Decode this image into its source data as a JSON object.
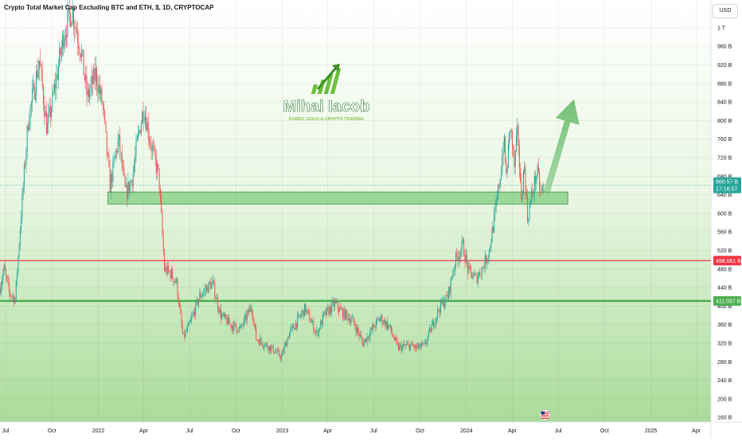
{
  "chart_title": "Crypto Total Market Cap Excluding BTC and ETH, $, 1D, CRYPTOCAP",
  "currency_button": "USD",
  "watermark": {
    "name": "Mihai Iacob",
    "tagline": "FOREX, GOLD & CRYPTO TRADING"
  },
  "colors": {
    "up": "#26a69a",
    "down": "#ef5350",
    "zone": "#5cbf5c",
    "resistance_line": "#f23645",
    "support_line": "#4caf50",
    "price_tag": "#26a69a",
    "arrow": "#66bb6a"
  },
  "chart_data": {
    "type": "candlestick",
    "title": "Crypto Total Market Cap Excluding BTC and ETH, $, 1D, CRYPTOCAP",
    "y_unit": "USD (billions)",
    "ylim": [
      150,
      1060
    ],
    "y_ticks": [
      {
        "value": 160,
        "label": "160 B"
      },
      {
        "value": 200,
        "label": "200 B"
      },
      {
        "value": 240,
        "label": "240 B"
      },
      {
        "value": 280,
        "label": "280 B"
      },
      {
        "value": 320,
        "label": "320 B"
      },
      {
        "value": 360,
        "label": "360 B"
      },
      {
        "value": 400,
        "label": "400 B"
      },
      {
        "value": 440,
        "label": "440 B"
      },
      {
        "value": 480,
        "label": "480 B"
      },
      {
        "value": 520,
        "label": "520 B"
      },
      {
        "value": 560,
        "label": "560 B"
      },
      {
        "value": 600,
        "label": "600 B"
      },
      {
        "value": 640,
        "label": "640 B"
      },
      {
        "value": 680,
        "label": "680 B"
      },
      {
        "value": 720,
        "label": "720 B"
      },
      {
        "value": 760,
        "label": "760 B"
      },
      {
        "value": 800,
        "label": "800 B"
      },
      {
        "value": 840,
        "label": "840 B"
      },
      {
        "value": 880,
        "label": "880 B"
      },
      {
        "value": 920,
        "label": "920 B"
      },
      {
        "value": 960,
        "label": "960 B"
      },
      {
        "value": 1000,
        "label": "1 T"
      }
    ],
    "xlim": [
      "2021-06-20",
      "2025-04-30"
    ],
    "x_ticks": [
      {
        "date": "2021-07-01",
        "label": "Jul"
      },
      {
        "date": "2021-10-01",
        "label": "Oct"
      },
      {
        "date": "2022-01-01",
        "label": "2022"
      },
      {
        "date": "2022-04-01",
        "label": "Apr"
      },
      {
        "date": "2022-07-01",
        "label": "Jul"
      },
      {
        "date": "2022-10-01",
        "label": "Oct"
      },
      {
        "date": "2023-01-01",
        "label": "2023"
      },
      {
        "date": "2023-04-01",
        "label": "Apr"
      },
      {
        "date": "2023-07-01",
        "label": "Jul"
      },
      {
        "date": "2023-10-01",
        "label": "Oct"
      },
      {
        "date": "2024-01-01",
        "label": "2024"
      },
      {
        "date": "2024-04-01",
        "label": "Apr"
      },
      {
        "date": "2024-07-01",
        "label": "Jul"
      },
      {
        "date": "2024-10-01",
        "label": "Oct"
      },
      {
        "date": "2025-01-01",
        "label": "2025"
      },
      {
        "date": "2025-04-01",
        "label": "Apr"
      }
    ],
    "price_path": [
      {
        "date": "2021-06-20",
        "value": 440
      },
      {
        "date": "2021-06-28",
        "value": 480
      },
      {
        "date": "2021-07-08",
        "value": 430
      },
      {
        "date": "2021-07-20",
        "value": 415
      },
      {
        "date": "2021-08-01",
        "value": 600
      },
      {
        "date": "2021-08-15",
        "value": 800
      },
      {
        "date": "2021-09-06",
        "value": 930
      },
      {
        "date": "2021-09-21",
        "value": 780
      },
      {
        "date": "2021-10-05",
        "value": 860
      },
      {
        "date": "2021-10-25",
        "value": 990
      },
      {
        "date": "2021-11-10",
        "value": 1040
      },
      {
        "date": "2021-11-28",
        "value": 950
      },
      {
        "date": "2021-12-10",
        "value": 850
      },
      {
        "date": "2021-12-27",
        "value": 900
      },
      {
        "date": "2022-01-10",
        "value": 830
      },
      {
        "date": "2022-01-24",
        "value": 660
      },
      {
        "date": "2022-02-10",
        "value": 760
      },
      {
        "date": "2022-02-24",
        "value": 640
      },
      {
        "date": "2022-03-10",
        "value": 680
      },
      {
        "date": "2022-03-20",
        "value": 760
      },
      {
        "date": "2022-04-01",
        "value": 830
      },
      {
        "date": "2022-04-15",
        "value": 750
      },
      {
        "date": "2022-05-01",
        "value": 680
      },
      {
        "date": "2022-05-12",
        "value": 480
      },
      {
        "date": "2022-05-25",
        "value": 470
      },
      {
        "date": "2022-06-05",
        "value": 450
      },
      {
        "date": "2022-06-18",
        "value": 330
      },
      {
        "date": "2022-07-01",
        "value": 360
      },
      {
        "date": "2022-07-20",
        "value": 420
      },
      {
        "date": "2022-08-05",
        "value": 440
      },
      {
        "date": "2022-08-15",
        "value": 450
      },
      {
        "date": "2022-09-01",
        "value": 380
      },
      {
        "date": "2022-09-20",
        "value": 360
      },
      {
        "date": "2022-10-10",
        "value": 350
      },
      {
        "date": "2022-11-01",
        "value": 400
      },
      {
        "date": "2022-11-10",
        "value": 330
      },
      {
        "date": "2022-11-25",
        "value": 320
      },
      {
        "date": "2022-12-15",
        "value": 305
      },
      {
        "date": "2022-12-30",
        "value": 290
      },
      {
        "date": "2023-01-14",
        "value": 340
      },
      {
        "date": "2023-02-01",
        "value": 370
      },
      {
        "date": "2023-02-15",
        "value": 395
      },
      {
        "date": "2023-03-10",
        "value": 340
      },
      {
        "date": "2023-03-25",
        "value": 380
      },
      {
        "date": "2023-04-15",
        "value": 405
      },
      {
        "date": "2023-05-01",
        "value": 385
      },
      {
        "date": "2023-05-20",
        "value": 370
      },
      {
        "date": "2023-06-10",
        "value": 320
      },
      {
        "date": "2023-06-25",
        "value": 345
      },
      {
        "date": "2023-07-14",
        "value": 375
      },
      {
        "date": "2023-08-01",
        "value": 355
      },
      {
        "date": "2023-08-18",
        "value": 310
      },
      {
        "date": "2023-09-10",
        "value": 315
      },
      {
        "date": "2023-09-25",
        "value": 310
      },
      {
        "date": "2023-10-10",
        "value": 315
      },
      {
        "date": "2023-10-24",
        "value": 355
      },
      {
        "date": "2023-11-10",
        "value": 400
      },
      {
        "date": "2023-11-25",
        "value": 420
      },
      {
        "date": "2023-12-10",
        "value": 500
      },
      {
        "date": "2023-12-25",
        "value": 530
      },
      {
        "date": "2024-01-05",
        "value": 475
      },
      {
        "date": "2024-01-20",
        "value": 460
      },
      {
        "date": "2024-02-01",
        "value": 480
      },
      {
        "date": "2024-02-15",
        "value": 520
      },
      {
        "date": "2024-03-01",
        "value": 620
      },
      {
        "date": "2024-03-10",
        "value": 700
      },
      {
        "date": "2024-03-15",
        "value": 760
      },
      {
        "date": "2024-03-20",
        "value": 680
      },
      {
        "date": "2024-03-28",
        "value": 790
      },
      {
        "date": "2024-04-05",
        "value": 700
      },
      {
        "date": "2024-04-12",
        "value": 780
      },
      {
        "date": "2024-04-18",
        "value": 630
      },
      {
        "date": "2024-04-25",
        "value": 700
      },
      {
        "date": "2024-05-01",
        "value": 590
      },
      {
        "date": "2024-05-10",
        "value": 640
      },
      {
        "date": "2024-05-20",
        "value": 690
      },
      {
        "date": "2024-05-28",
        "value": 640
      },
      {
        "date": "2024-06-03",
        "value": 660
      }
    ],
    "last_price": 660.57,
    "last_price_label": "660.57 B",
    "countdown_label": "17:16:57",
    "lines": [
      {
        "name": "resistance",
        "value": 498.061,
        "label": "498.061 B"
      },
      {
        "name": "support",
        "value": 411.097,
        "label": "411.097 B"
      }
    ],
    "zone": {
      "from_date": "2022-01-20",
      "to_date": "2024-07-20",
      "low": 620,
      "high": 646
    },
    "arrow": {
      "from_date": "2024-06-08",
      "from_value": 645,
      "to_date": "2024-08-01",
      "to_value": 845
    },
    "event_marker": "2024-06-05",
    "grid": true
  }
}
